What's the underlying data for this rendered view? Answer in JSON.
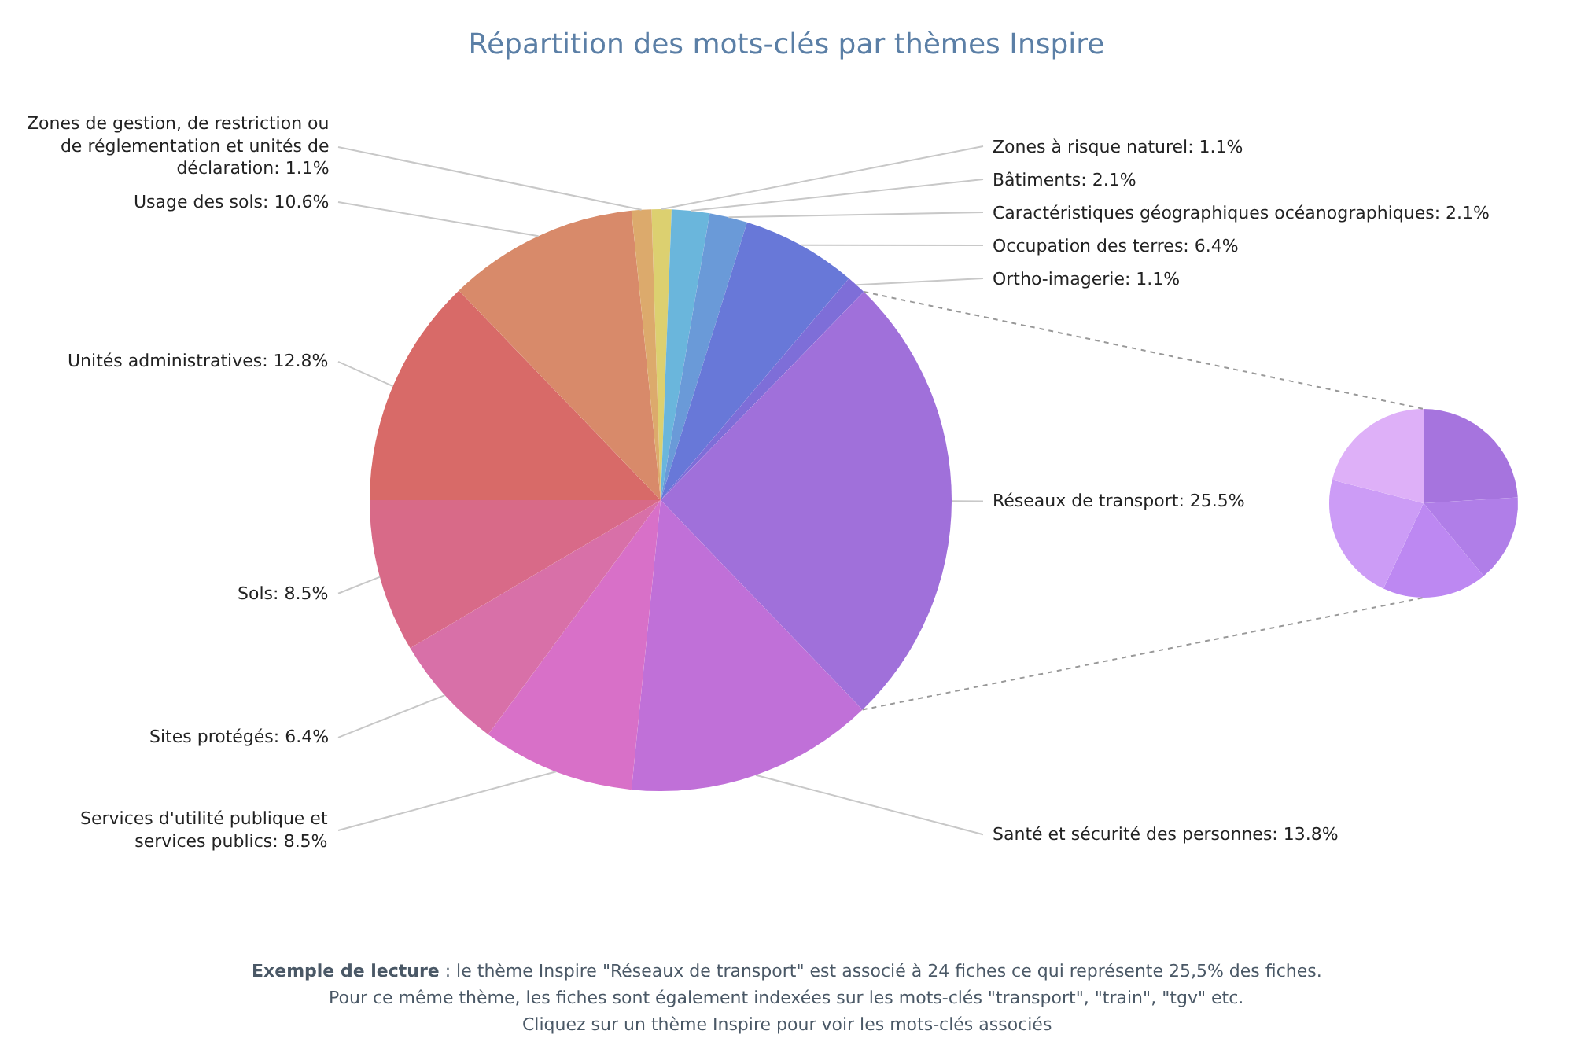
{
  "chart_data": [
    {
      "type": "pie",
      "title": "Répartition des mots-clés par thèmes Inspire",
      "categories": [
        "Zones à risque naturel",
        "Bâtiments",
        "Caractéristiques géographiques océanographiques",
        "Occupation des terres",
        "Ortho-imagerie",
        "Réseaux de transport",
        "Santé et sécurité des personnes",
        "Services d'utilité publique et services publics",
        "Sites protégés",
        "Sols",
        "Unités administratives",
        "Usage des sols",
        "Zones de gestion, de restriction ou de réglementation et unités de déclaration"
      ],
      "values": [
        1.1,
        2.1,
        2.1,
        6.4,
        1.1,
        25.5,
        13.8,
        8.5,
        6.4,
        8.5,
        12.8,
        10.6,
        1.1
      ],
      "value_labels": [
        "1.1%",
        "2.1%",
        "2.1%",
        "6.4%",
        "1.1%",
        "25.5%",
        "13.8%",
        "8.5%",
        "6.4%",
        "8.5%",
        "12.8%",
        "10.6%",
        "1.1%"
      ],
      "colors": [
        "#dcd070",
        "#6ab6dc",
        "#6a9ad8",
        "#6878d8",
        "#7e6ed8",
        "#a070da",
        "#c070d8",
        "#d870c8",
        "#d870a8",
        "#d86a88",
        "#d86a68",
        "#d88a6a",
        "#dcaa6c"
      ],
      "legend": false,
      "annotations": [
        "Exemple de lecture",
        " : le thème Inspire \"Réseaux de transport\" est associé à 24 fiches ce qui représente 25,5% des fiches.",
        "Pour ce même thème, les fiches sont également indexées sur les mots-clés \"transport\", \"train\", \"tgv\" etc.",
        "Cliquez sur un thème Inspire pour voir les mots-clés associés"
      ]
    },
    {
      "type": "pie",
      "categories": [
        null,
        null,
        null,
        null,
        null
      ],
      "values": [
        24,
        15,
        18,
        22,
        21
      ],
      "colors": [
        "#a674de",
        "#b07ee8",
        "#bd88f2",
        "#cc9cf6",
        "#deb0f8"
      ],
      "legend": false
    }
  ]
}
